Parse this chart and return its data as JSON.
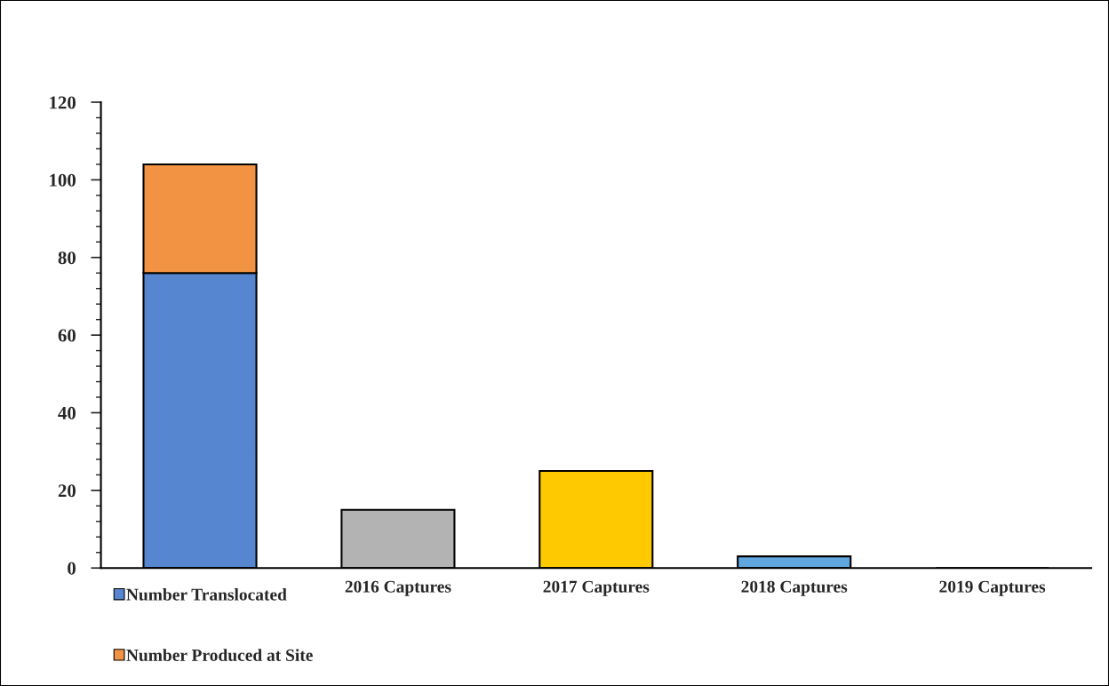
{
  "chart_data": {
    "type": "bar",
    "stacked": true,
    "categories": [
      null,
      "2016 Captures",
      "2017 Captures",
      "2018 Captures",
      "2019 Captures"
    ],
    "series": [
      {
        "name": "Number Translocated",
        "color": "#5586cf",
        "values": [
          76,
          null,
          null,
          null,
          null
        ]
      },
      {
        "name": "Number Produced at Site",
        "color": "#f19342",
        "values": [
          28,
          null,
          null,
          null,
          null
        ]
      },
      {
        "colors": [
          "#5586cf",
          "#b3b3b3",
          "#ffc900",
          "#60a7e0",
          "#60a7e0"
        ],
        "values": [
          null,
          15,
          25,
          3,
          0
        ]
      }
    ],
    "ylim": [
      0,
      120
    ],
    "yticks": [
      0,
      20,
      40,
      60,
      80,
      100,
      120
    ],
    "grid": false,
    "legend": "bottom left"
  }
}
